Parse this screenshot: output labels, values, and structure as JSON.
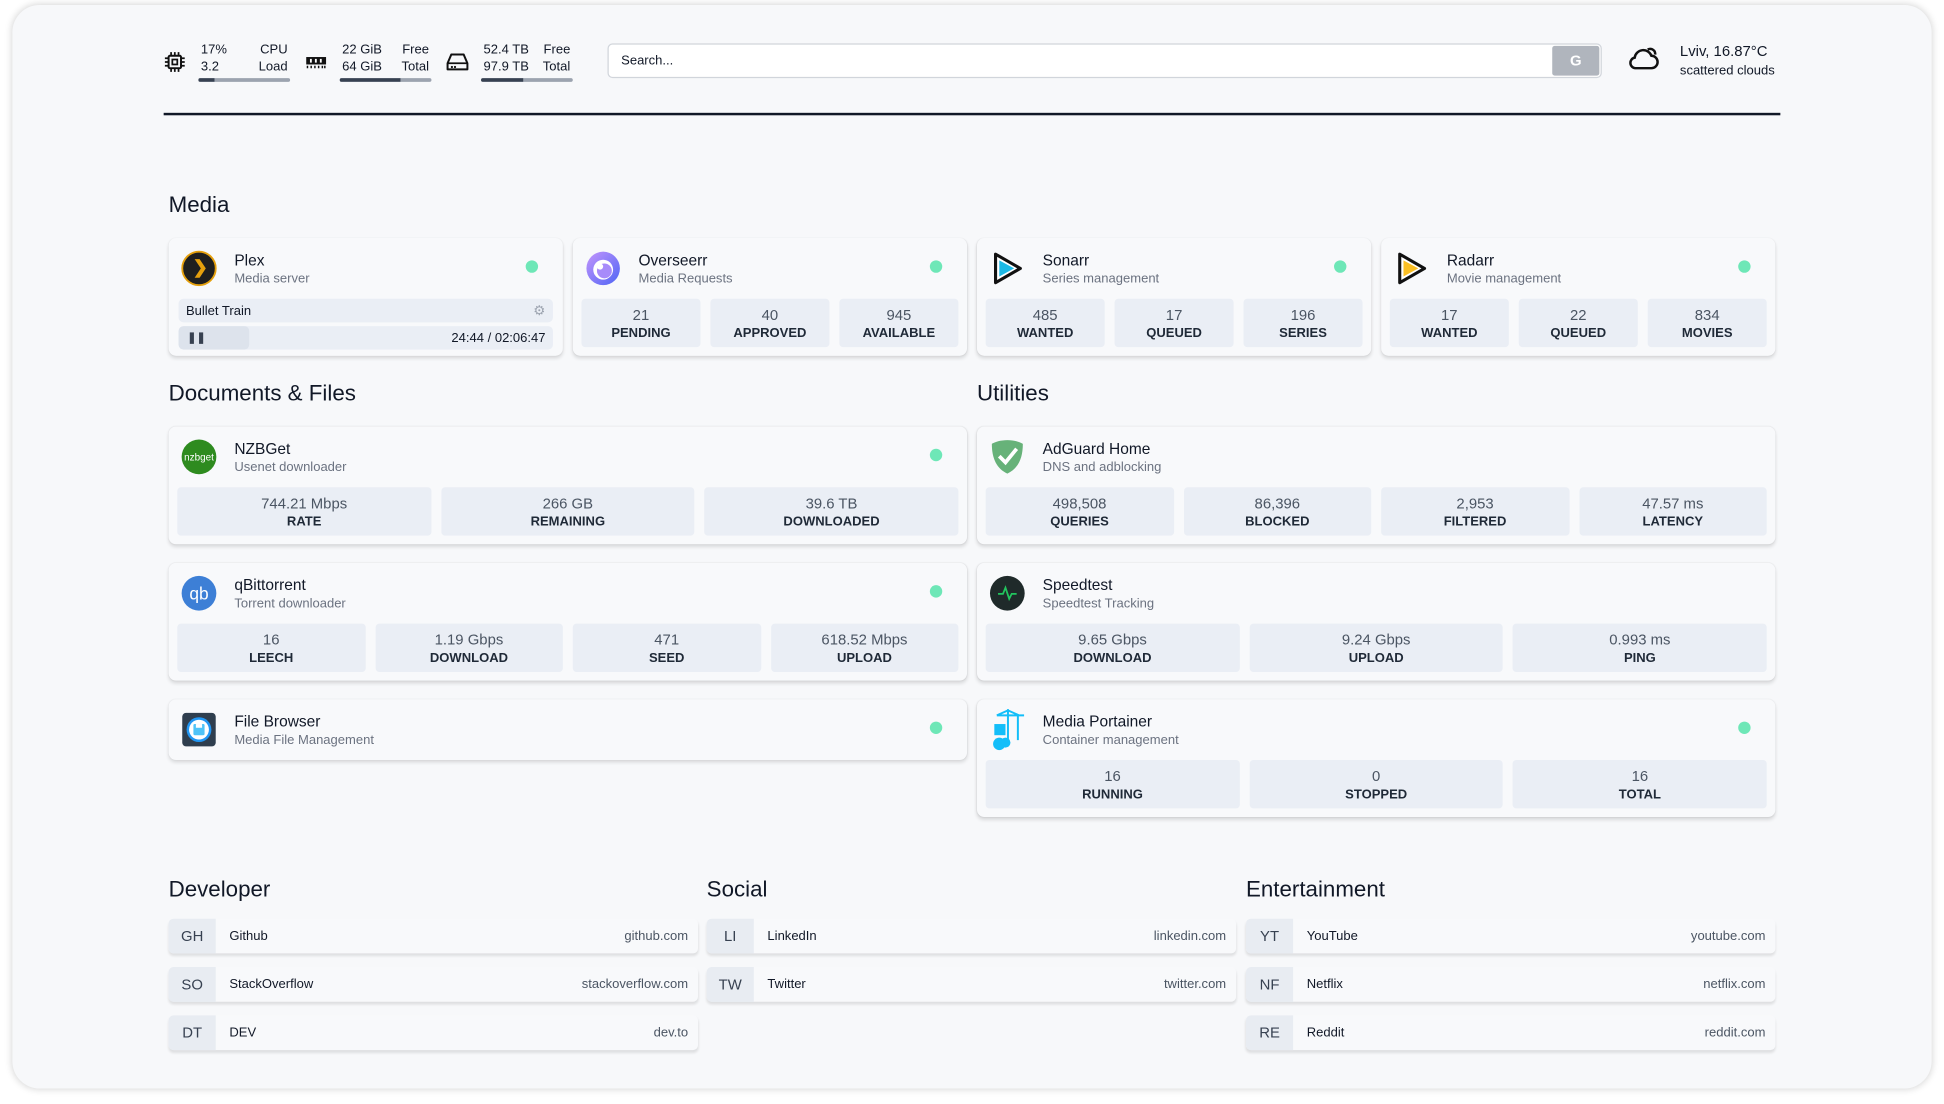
{
  "header": {
    "cpu": {
      "icon": "cpu-icon",
      "value": "17%",
      "label": "CPU",
      "load_value": "3.2",
      "load_label": "Load",
      "percent": 17
    },
    "memory": {
      "icon": "memory-icon",
      "free": "22 GiB",
      "free_label": "Free",
      "total": "64 GiB",
      "total_label": "Total",
      "used_percent": 66
    },
    "disk": {
      "icon": "hard-drive-icon",
      "free": "52.4 TB",
      "free_label": "Free",
      "total": "97.9 TB",
      "total_label": "Total",
      "used_percent": 46
    },
    "search": {
      "placeholder": "Search...",
      "button": "G"
    },
    "weather": {
      "icon": "cloud-icon",
      "location_temp": "Lviv, 16.87°C",
      "condition": "scattered clouds"
    }
  },
  "sections": {
    "media": "Media",
    "documents": "Documents & Files",
    "utilities": "Utilities",
    "developer": "Developer",
    "social": "Social",
    "entertainment": "Entertainment"
  },
  "status_color": "#6ee7b7",
  "media": {
    "plex": {
      "name": "Plex",
      "sub": "Media server",
      "now_playing": "Bullet Train",
      "time": "24:44 / 02:06:47",
      "progress_percent": 19
    },
    "overseerr": {
      "name": "Overseerr",
      "sub": "Media Requests",
      "stats": [
        {
          "v": "21",
          "l": "PENDING"
        },
        {
          "v": "40",
          "l": "APPROVED"
        },
        {
          "v": "945",
          "l": "AVAILABLE"
        }
      ]
    },
    "sonarr": {
      "name": "Sonarr",
      "sub": "Series management",
      "stats": [
        {
          "v": "485",
          "l": "WANTED"
        },
        {
          "v": "17",
          "l": "QUEUED"
        },
        {
          "v": "196",
          "l": "SERIES"
        }
      ]
    },
    "radarr": {
      "name": "Radarr",
      "sub": "Movie management",
      "stats": [
        {
          "v": "17",
          "l": "WANTED"
        },
        {
          "v": "22",
          "l": "QUEUED"
        },
        {
          "v": "834",
          "l": "MOVIES"
        }
      ]
    }
  },
  "documents": {
    "nzbget": {
      "name": "NZBGet",
      "sub": "Usenet downloader",
      "logo_text": "nzbget",
      "stats": [
        {
          "v": "744.21 Mbps",
          "l": "RATE"
        },
        {
          "v": "266 GB",
          "l": "REMAINING"
        },
        {
          "v": "39.6 TB",
          "l": "DOWNLOADED"
        }
      ]
    },
    "qbittorrent": {
      "name": "qBittorrent",
      "sub": "Torrent downloader",
      "logo_text": "qb",
      "stats": [
        {
          "v": "16",
          "l": "LEECH"
        },
        {
          "v": "1.19 Gbps",
          "l": "DOWNLOAD"
        },
        {
          "v": "471",
          "l": "SEED"
        },
        {
          "v": "618.52 Mbps",
          "l": "UPLOAD"
        }
      ]
    },
    "filebrowser": {
      "name": "File Browser",
      "sub": "Media File Management"
    }
  },
  "utilities": {
    "adguard": {
      "name": "AdGuard Home",
      "sub": "DNS and adblocking",
      "stats": [
        {
          "v": "498,508",
          "l": "QUERIES"
        },
        {
          "v": "86,396",
          "l": "BLOCKED"
        },
        {
          "v": "2,953",
          "l": "FILTERED"
        },
        {
          "v": "47.57 ms",
          "l": "LATENCY"
        }
      ]
    },
    "speedtest": {
      "name": "Speedtest",
      "sub": "Speedtest Tracking",
      "stats": [
        {
          "v": "9.65 Gbps",
          "l": "DOWNLOAD"
        },
        {
          "v": "9.24 Gbps",
          "l": "UPLOAD"
        },
        {
          "v": "0.993 ms",
          "l": "PING"
        }
      ]
    },
    "portainer": {
      "name": "Media Portainer",
      "sub": "Container management",
      "stats": [
        {
          "v": "16",
          "l": "RUNNING"
        },
        {
          "v": "0",
          "l": "STOPPED"
        },
        {
          "v": "16",
          "l": "TOTAL"
        }
      ]
    }
  },
  "bookmarks": {
    "developer": [
      {
        "abbr": "GH",
        "name": "Github",
        "url": "github.com"
      },
      {
        "abbr": "SO",
        "name": "StackOverflow",
        "url": "stackoverflow.com"
      },
      {
        "abbr": "DT",
        "name": "DEV",
        "url": "dev.to"
      }
    ],
    "social": [
      {
        "abbr": "LI",
        "name": "LinkedIn",
        "url": "linkedin.com"
      },
      {
        "abbr": "TW",
        "name": "Twitter",
        "url": "twitter.com"
      }
    ],
    "entertainment": [
      {
        "abbr": "YT",
        "name": "YouTube",
        "url": "youtube.com"
      },
      {
        "abbr": "NF",
        "name": "Netflix",
        "url": "netflix.com"
      },
      {
        "abbr": "RE",
        "name": "Reddit",
        "url": "reddit.com"
      }
    ]
  }
}
